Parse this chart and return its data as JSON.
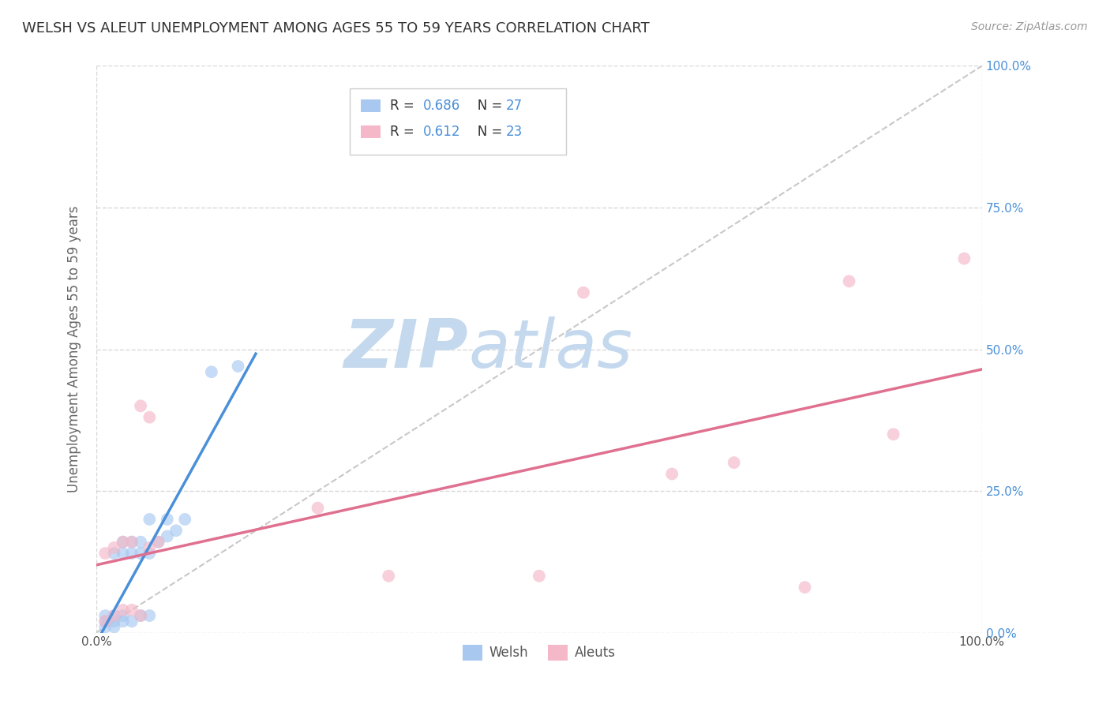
{
  "title": "WELSH VS ALEUT UNEMPLOYMENT AMONG AGES 55 TO 59 YEARS CORRELATION CHART",
  "source": "Source: ZipAtlas.com",
  "ylabel": "Unemployment Among Ages 55 to 59 years",
  "welsh_label": "Welsh",
  "aleuts_label": "Aleuts",
  "welsh_R": 0.686,
  "welsh_N": 27,
  "aleuts_R": 0.612,
  "aleuts_N": 23,
  "welsh_color": "#a8c8f0",
  "aleuts_color": "#f4b8c8",
  "welsh_line_color": "#4a90d9",
  "aleuts_line_color": "#e07090",
  "diag_color": "#c8c8c8",
  "legend_text_color": "#4a90d9",
  "title_color": "#333333",
  "grid_color": "#d8d8d8",
  "marker_size": 130,
  "alpha": 0.65,
  "xlim": [
    0.0,
    1.0
  ],
  "ylim": [
    0.0,
    1.0
  ],
  "welsh_x": [
    0.01,
    0.01,
    0.01,
    0.02,
    0.02,
    0.02,
    0.02,
    0.03,
    0.03,
    0.03,
    0.03,
    0.04,
    0.04,
    0.04,
    0.05,
    0.05,
    0.05,
    0.06,
    0.06,
    0.06,
    0.07,
    0.08,
    0.08,
    0.09,
    0.1,
    0.13,
    0.16
  ],
  "welsh_y": [
    0.01,
    0.02,
    0.03,
    0.01,
    0.02,
    0.03,
    0.14,
    0.02,
    0.03,
    0.14,
    0.16,
    0.02,
    0.14,
    0.16,
    0.03,
    0.14,
    0.16,
    0.03,
    0.14,
    0.2,
    0.16,
    0.17,
    0.2,
    0.18,
    0.2,
    0.46,
    0.47
  ],
  "aleuts_x": [
    0.01,
    0.01,
    0.02,
    0.02,
    0.03,
    0.03,
    0.04,
    0.04,
    0.05,
    0.05,
    0.06,
    0.06,
    0.07,
    0.25,
    0.33,
    0.5,
    0.55,
    0.65,
    0.72,
    0.8,
    0.85,
    0.9,
    0.98
  ],
  "aleuts_y": [
    0.02,
    0.14,
    0.03,
    0.15,
    0.04,
    0.16,
    0.04,
    0.16,
    0.03,
    0.4,
    0.38,
    0.15,
    0.16,
    0.22,
    0.1,
    0.1,
    0.6,
    0.28,
    0.3,
    0.08,
    0.62,
    0.35,
    0.66
  ]
}
